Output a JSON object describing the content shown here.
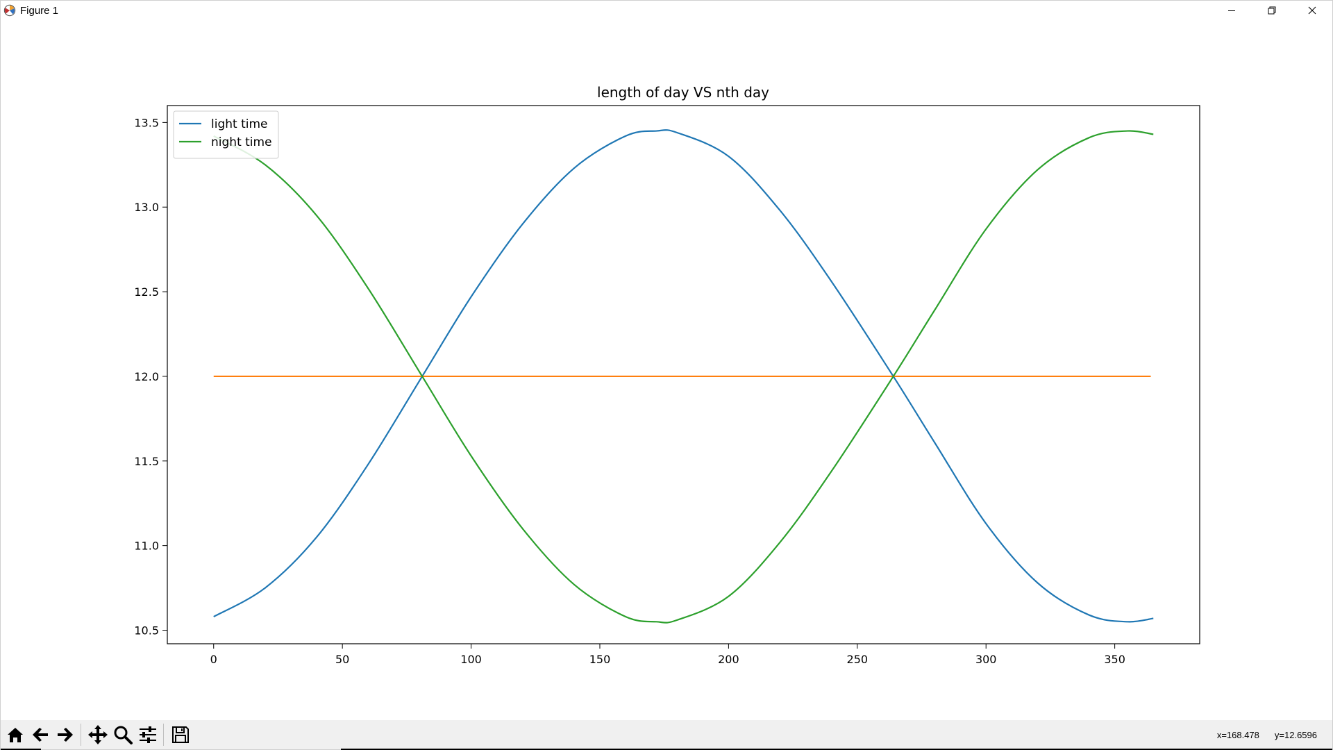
{
  "window": {
    "title": "Figure 1",
    "icon": "matplotlib-icon",
    "controls": [
      "minimize-icon",
      "restore-icon",
      "close-icon"
    ]
  },
  "chart_data": {
    "type": "line",
    "title": "length of day VS nth day",
    "xlabel": "",
    "ylabel": "",
    "xlim": [
      -18,
      383
    ],
    "ylim": [
      10.42,
      13.6
    ],
    "xticks": [
      0,
      50,
      100,
      150,
      200,
      250,
      300,
      350
    ],
    "yticks": [
      10.5,
      11.0,
      11.5,
      12.0,
      12.5,
      13.0,
      13.5
    ],
    "ytick_labels": [
      "10.5",
      "11.0",
      "11.5",
      "12.0",
      "12.5",
      "13.0",
      "13.5"
    ],
    "legend_position": "top-left",
    "grid": false,
    "series": [
      {
        "name": "light time",
        "color": "#1f77b4",
        "x": [
          0,
          20,
          40,
          60,
          81,
          100,
          120,
          140,
          160,
          172,
          180,
          200,
          220,
          240,
          264,
          280,
          300,
          320,
          340,
          355,
          365
        ],
        "y": [
          10.58,
          10.75,
          11.05,
          11.48,
          12.0,
          12.47,
          12.9,
          13.23,
          13.42,
          13.45,
          13.44,
          13.3,
          12.98,
          12.56,
          12.0,
          11.61,
          11.13,
          10.78,
          10.59,
          10.55,
          10.57
        ]
      },
      {
        "name": "",
        "color": "#ff7f0e",
        "x": [
          0,
          364
        ],
        "y": [
          12.0,
          12.0
        ]
      },
      {
        "name": "night time",
        "color": "#2ca02c",
        "x": [
          0,
          20,
          40,
          60,
          81,
          100,
          120,
          140,
          160,
          172,
          180,
          200,
          220,
          240,
          264,
          280,
          300,
          320,
          340,
          355,
          365
        ],
        "y": [
          13.42,
          13.25,
          12.95,
          12.52,
          12.0,
          11.53,
          11.1,
          10.77,
          10.58,
          10.55,
          10.56,
          10.7,
          11.02,
          11.44,
          12.0,
          12.39,
          12.87,
          13.22,
          13.41,
          13.45,
          13.43
        ]
      }
    ]
  },
  "toolbar": {
    "buttons": [
      {
        "icon": "home-icon"
      },
      {
        "icon": "back-arrow-icon"
      },
      {
        "icon": "forward-arrow-icon"
      },
      {
        "icon": "pan-icon"
      },
      {
        "icon": "zoom-icon"
      },
      {
        "icon": "subplots-config-icon"
      },
      {
        "icon": "save-icon"
      }
    ]
  },
  "status": {
    "x_readout": "x=168.478",
    "y_readout": "y=12.6596"
  }
}
